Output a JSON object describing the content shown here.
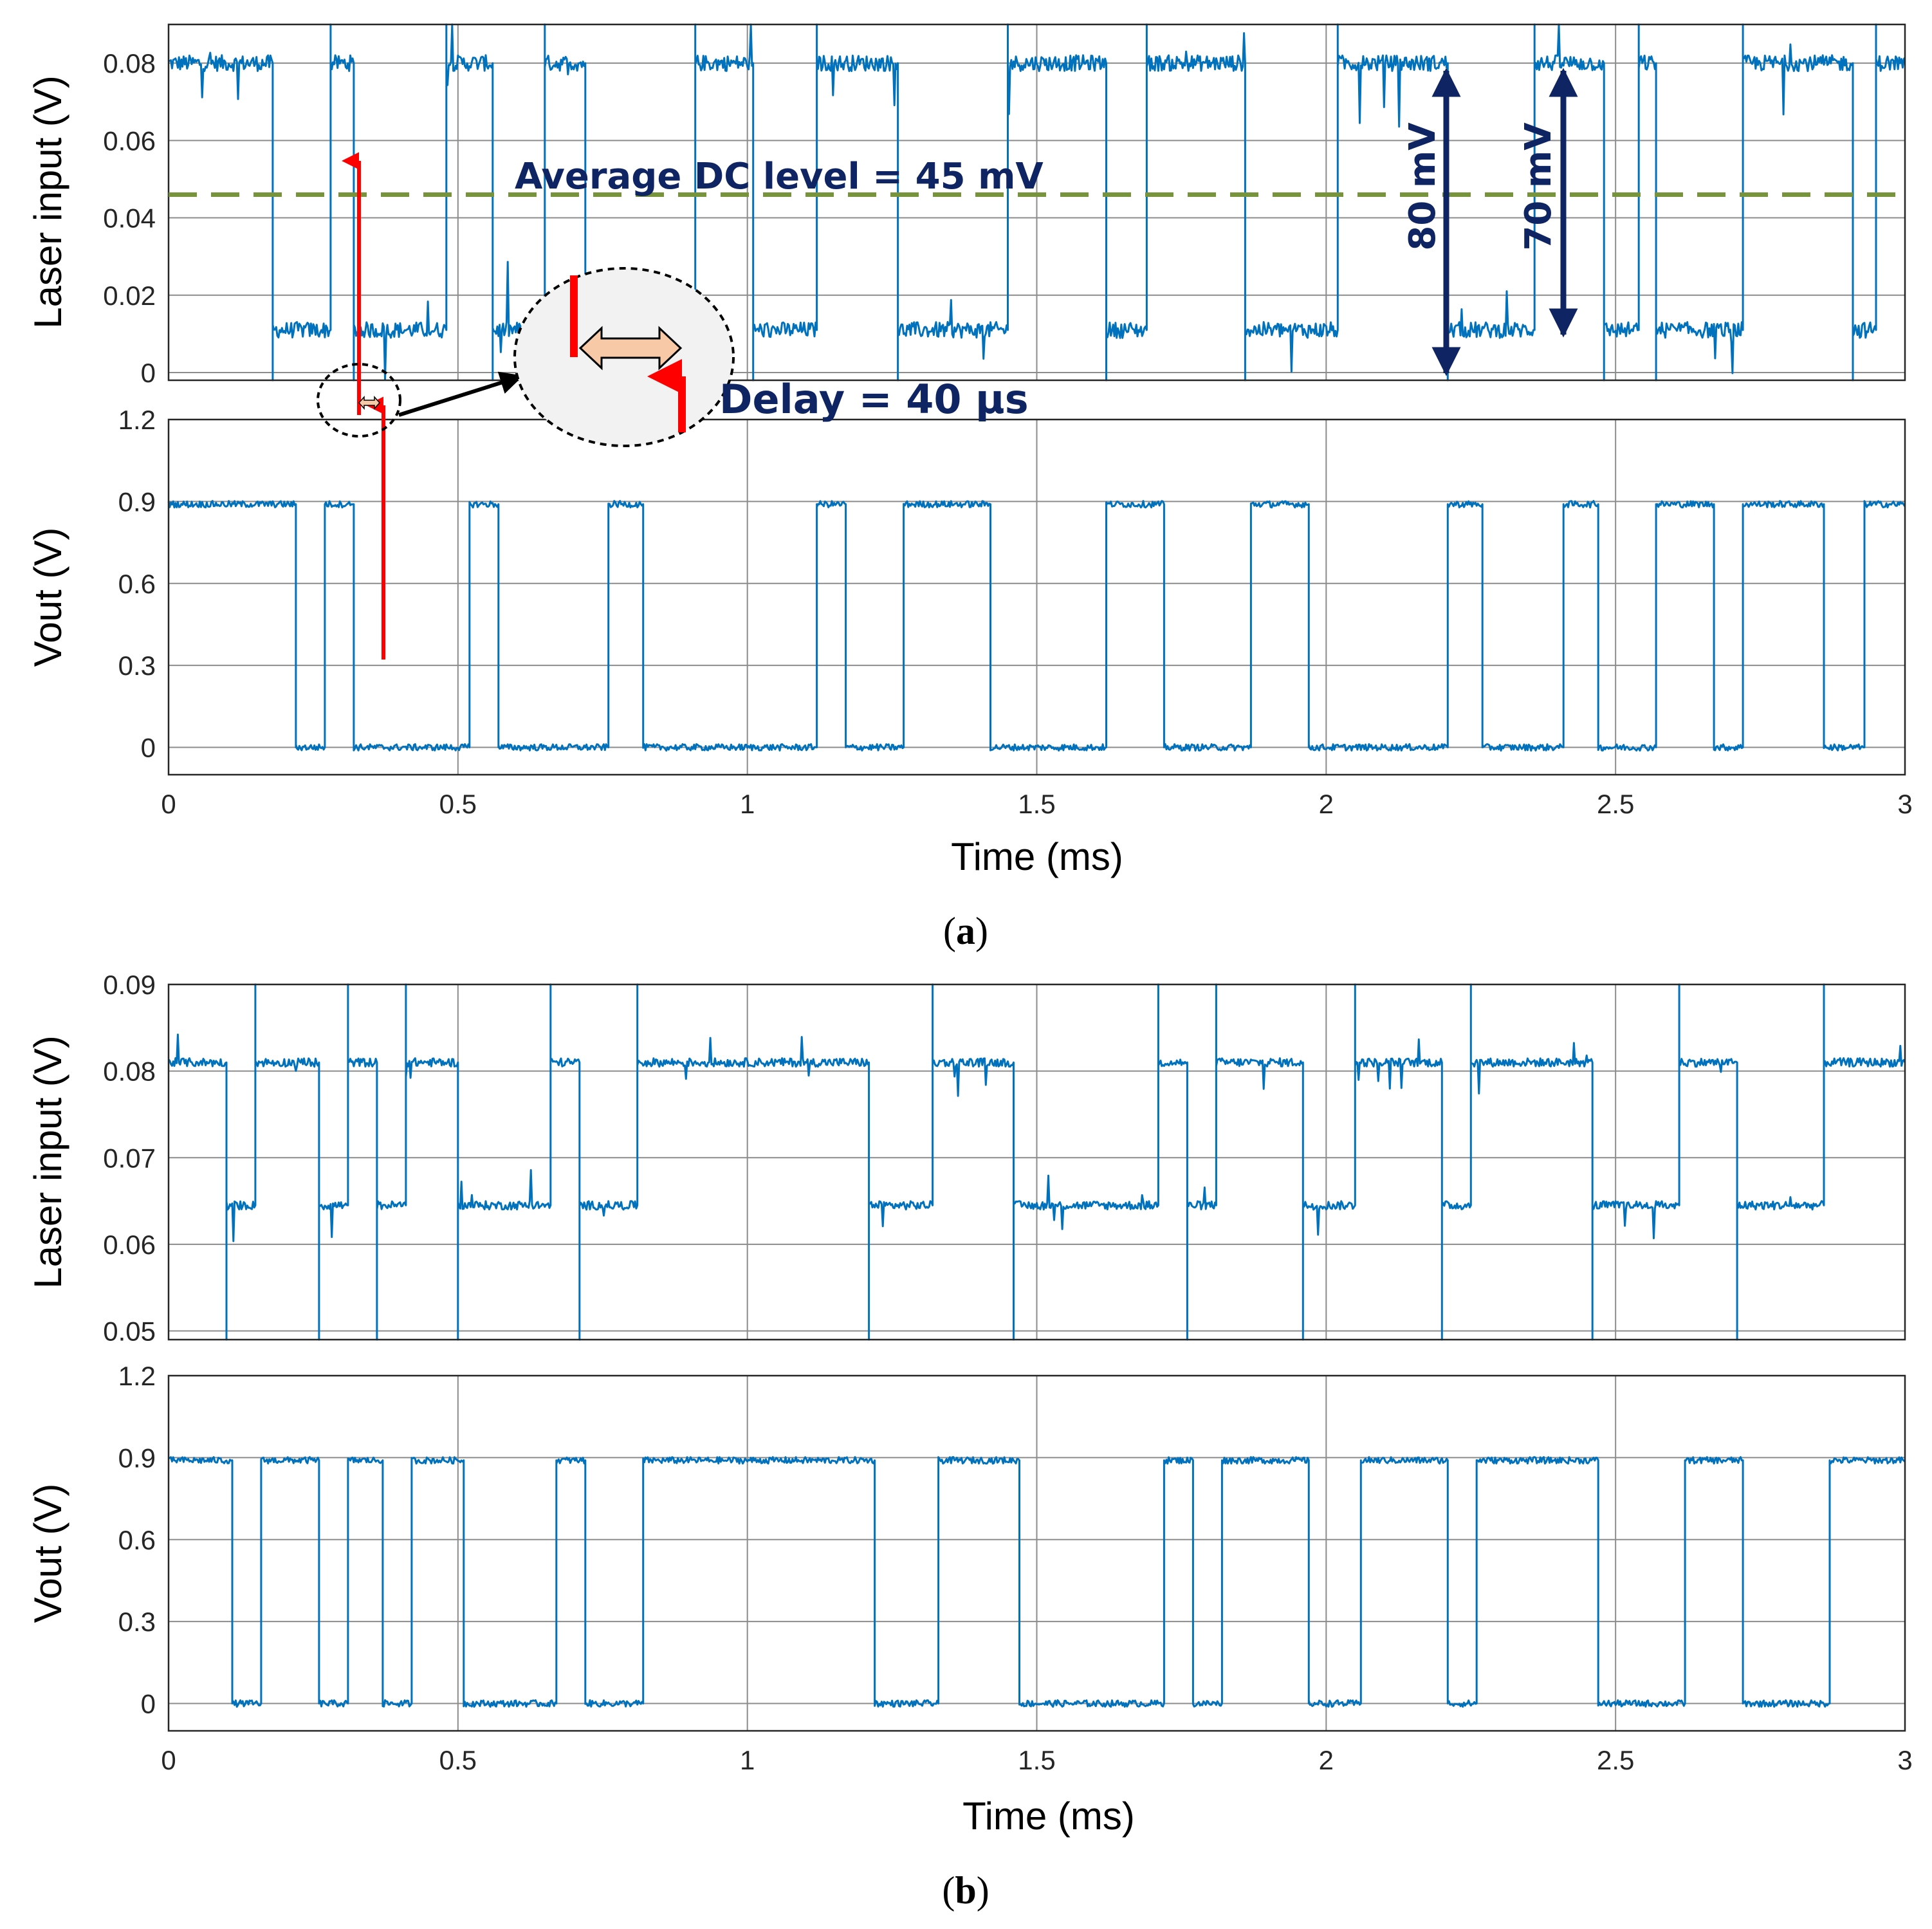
{
  "chart_data": [
    {
      "type": "line",
      "panel": "a-top",
      "title": "",
      "xlabel": "",
      "ylabel": "Laser input (V)",
      "xlim": [
        0,
        3
      ],
      "ylim": [
        -0.002,
        0.09
      ],
      "yticks": [
        0,
        0.02,
        0.04,
        0.06,
        0.08
      ],
      "ytick_labels": [
        "0",
        "0.02",
        "0.04",
        "0.06",
        "0.08"
      ],
      "grid": true,
      "low": 0.011,
      "high": 0.08,
      "edges": [
        0.18,
        0.28,
        0.32,
        0.48,
        0.56,
        0.65,
        0.72,
        0.91,
        1.01,
        1.12,
        1.26,
        1.45,
        1.62,
        1.69,
        1.86,
        2.02,
        2.21,
        2.36,
        2.48,
        2.54,
        2.57,
        2.72,
        2.91,
        2.95
      ],
      "series": [
        {
          "name": "Laser input",
          "color": "#0072bd"
        }
      ],
      "annotations": {
        "dc_level": 0.046,
        "dc_label": "Average DC level = 45 mV",
        "pp1_label": "80 mV",
        "pp2_label": "70 mV",
        "delay_label": "Delay = 40 μs"
      }
    },
    {
      "type": "line",
      "panel": "a-bottom",
      "title": "",
      "xlabel": "Time (ms)",
      "ylabel": "Vout (V)",
      "xlim": [
        0,
        3
      ],
      "ylim": [
        -0.1,
        1.2
      ],
      "xticks": [
        0,
        0.5,
        1,
        1.5,
        2,
        2.5,
        3
      ],
      "xtick_labels": [
        "0",
        "0.5",
        "1",
        "1.5",
        "2",
        "2.5",
        "3"
      ],
      "yticks": [
        0,
        0.3,
        0.6,
        0.9,
        1.2
      ],
      "ytick_labels": [
        "0",
        "0.3",
        "0.6",
        "0.9",
        "1.2"
      ],
      "grid": true,
      "low": 0,
      "high": 0.89,
      "edges": [
        0.22,
        0.27,
        0.32,
        0.52,
        0.57,
        0.76,
        0.82,
        1.12,
        1.17,
        1.27,
        1.42,
        1.62,
        1.72,
        1.87,
        1.97,
        2.21,
        2.27,
        2.41,
        2.47,
        2.57,
        2.67,
        2.72,
        2.86,
        2.93
      ],
      "series": [
        {
          "name": "Vout",
          "color": "#0072bd"
        }
      ],
      "caption": "(a)"
    },
    {
      "type": "line",
      "panel": "b-top",
      "title": "",
      "xlabel": "",
      "ylabel": "Laser input (V)",
      "xlim": [
        0,
        3
      ],
      "ylim": [
        0.049,
        0.09
      ],
      "yticks": [
        0.05,
        0.06,
        0.07,
        0.08,
        0.09
      ],
      "ytick_labels": [
        "0.05",
        "0.06",
        "0.07",
        "0.08",
        "0.09"
      ],
      "grid": true,
      "low": 0.0645,
      "high": 0.081,
      "edges": [
        0.1,
        0.15,
        0.26,
        0.31,
        0.36,
        0.41,
        0.5,
        0.66,
        0.71,
        0.81,
        1.21,
        1.32,
        1.46,
        1.71,
        1.76,
        1.81,
        1.96,
        2.05,
        2.2,
        2.25,
        2.46,
        2.61,
        2.71,
        2.86
      ],
      "series": [
        {
          "name": "Laser input",
          "color": "#0072bd"
        }
      ]
    },
    {
      "type": "line",
      "panel": "b-bottom",
      "title": "",
      "xlabel": "Time (ms)",
      "ylabel": "Vout (V)",
      "xlim": [
        0,
        3
      ],
      "ylim": [
        -0.1,
        1.2
      ],
      "xticks": [
        0,
        0.5,
        1,
        1.5,
        2,
        2.5,
        3
      ],
      "xtick_labels": [
        "0",
        "0.5",
        "1",
        "1.5",
        "2",
        "2.5",
        "3"
      ],
      "yticks": [
        0,
        0.3,
        0.6,
        0.9,
        1.2
      ],
      "ytick_labels": [
        "0",
        "0.3",
        "0.6",
        "0.9",
        "1.2"
      ],
      "grid": true,
      "low": 0,
      "high": 0.89,
      "edges": [
        0.11,
        0.16,
        0.26,
        0.31,
        0.37,
        0.42,
        0.51,
        0.67,
        0.72,
        0.82,
        1.22,
        1.33,
        1.47,
        1.72,
        1.77,
        1.82,
        1.97,
        2.06,
        2.21,
        2.26,
        2.47,
        2.62,
        2.72,
        2.87
      ],
      "series": [
        {
          "name": "Vout",
          "color": "#0072bd"
        }
      ],
      "caption": "(b)"
    }
  ],
  "colors": {
    "trace": "#0072bd",
    "grid": "#8c8c8c",
    "dc_line": "#77933c",
    "arrow_red": "#ff0000",
    "annot_blue": "#0f2563",
    "delay_fill": "#f7c9a6"
  }
}
